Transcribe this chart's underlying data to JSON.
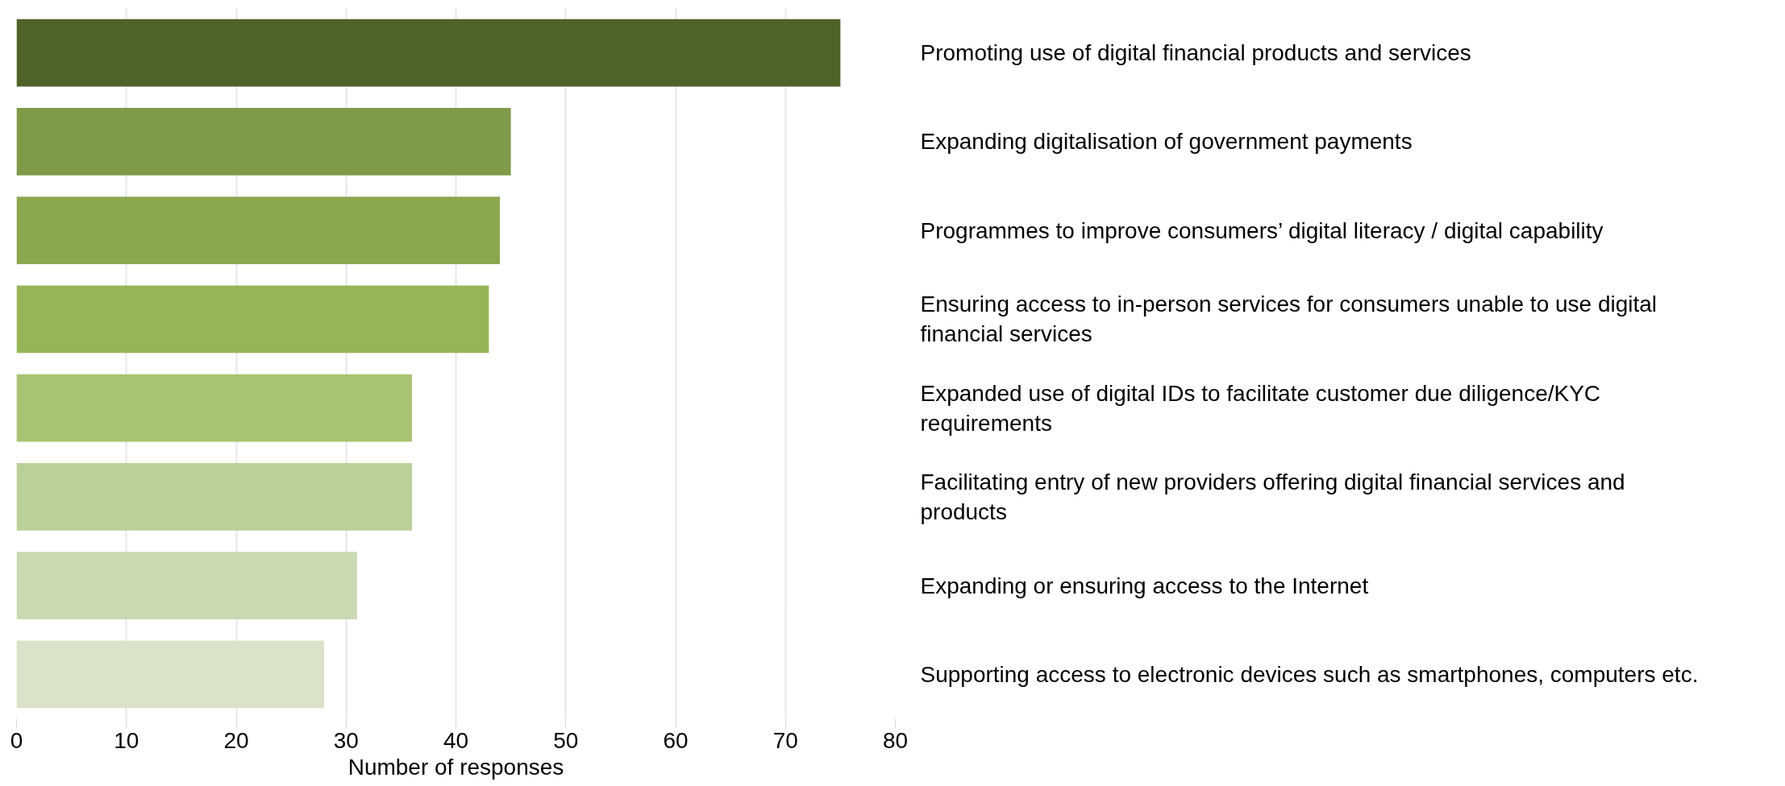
{
  "chart_data": {
    "type": "bar",
    "orientation": "horizontal",
    "xlabel": "Number of responses",
    "categories": [
      "Promoting use of digital financial products and services",
      "Expanding digitalisation of government payments",
      "Programmes to improve consumers’ digital literacy / digital capability",
      "Ensuring access to in-person services for consumers unable to use digital financial services",
      "Expanded use of digital IDs to facilitate customer due diligence/KYC requirements",
      "Facilitating entry of new providers offering digital financial services and products",
      "Expanding or ensuring access to the Internet",
      "Supporting access to electronic devices such as smartphones, computers etc."
    ],
    "values": [
      75,
      45,
      44,
      43,
      36,
      36,
      31,
      28
    ],
    "colors": [
      "#4f6228",
      "#7f9a48",
      "#8ba750",
      "#97b558",
      "#a8c373",
      "#bbcf98",
      "#cad9b2",
      "#dae3ca"
    ],
    "xlim": [
      0,
      80
    ],
    "xticks": [
      0,
      10,
      20,
      30,
      40,
      50,
      60,
      70,
      80
    ],
    "grid": "x"
  }
}
